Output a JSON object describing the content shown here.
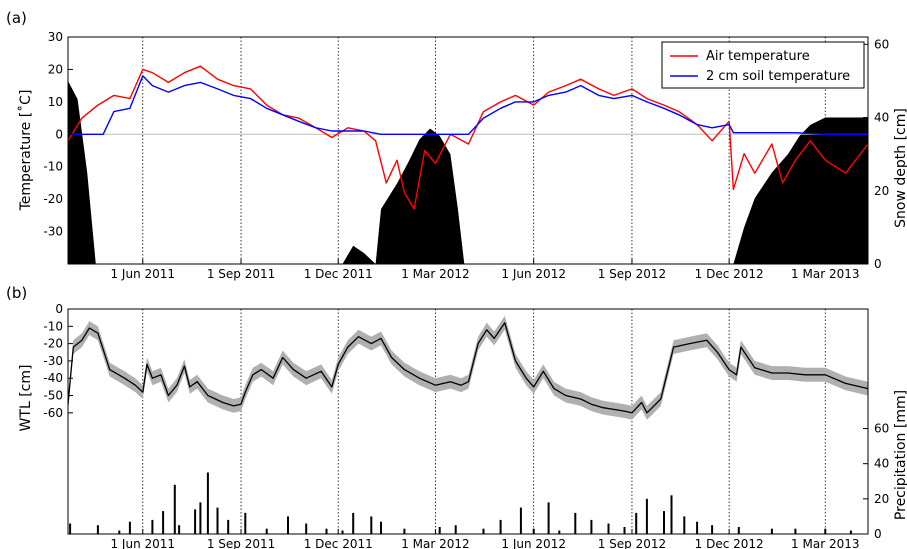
{
  "chart_data": [
    {
      "panel_label": "(a)",
      "type": "line",
      "x_tick_labels": [
        "1 Jun 2011",
        "1 Sep 2011",
        "1 Dec 2011",
        "1 Mar 2012",
        "1 Jun 2012",
        "1 Sep 2012",
        "1 Dec 2012",
        "1 Mar 2013"
      ],
      "x_tick_dates": [
        "2011-06-01",
        "2011-09-01",
        "2011-12-01",
        "2012-03-01",
        "2012-06-01",
        "2012-09-01",
        "2012-12-01",
        "2013-03-01"
      ],
      "xlim": [
        "2011-03-23",
        "2013-04-10"
      ],
      "ylabel": "Temperature [˚C]",
      "ylim": [
        -40,
        30
      ],
      "y_ticks": [
        -30,
        -20,
        -10,
        0,
        10,
        20,
        30
      ],
      "y2label": "Snow depth [cm]",
      "y2_ticks": [
        0,
        20,
        40,
        60
      ],
      "y2lim": [
        0,
        62
      ],
      "zero_line": true,
      "vertical_dotted_lines_at_x_ticks": true,
      "legend_position": "top-right",
      "series": [
        {
          "name": "Air temperature",
          "color": "#ff0000",
          "x": [
            "2011-03-23",
            "2011-04-05",
            "2011-04-20",
            "2011-05-05",
            "2011-05-20",
            "2011-06-01",
            "2011-06-10",
            "2011-06-25",
            "2011-07-10",
            "2011-07-25",
            "2011-08-10",
            "2011-08-25",
            "2011-09-10",
            "2011-09-25",
            "2011-10-10",
            "2011-10-25",
            "2011-11-10",
            "2011-11-25",
            "2011-12-10",
            "2011-12-25",
            "2012-01-05",
            "2012-01-15",
            "2012-01-25",
            "2012-02-01",
            "2012-02-10",
            "2012-02-20",
            "2012-03-01",
            "2012-03-15",
            "2012-04-01",
            "2012-04-15",
            "2012-05-01",
            "2012-05-15",
            "2012-06-01",
            "2012-06-15",
            "2012-07-01",
            "2012-07-15",
            "2012-08-01",
            "2012-08-15",
            "2012-09-01",
            "2012-09-15",
            "2012-10-01",
            "2012-10-15",
            "2012-11-01",
            "2012-11-15",
            "2012-12-01",
            "2012-12-05",
            "2012-12-15",
            "2012-12-25",
            "2013-01-10",
            "2013-01-20",
            "2013-02-01",
            "2013-02-15",
            "2013-03-01",
            "2013-03-20",
            "2013-04-10"
          ],
          "values": [
            -2,
            5,
            9,
            12,
            11,
            20,
            19,
            16,
            19,
            21,
            17,
            15,
            14,
            9,
            6,
            5,
            2,
            -1,
            2,
            1,
            -2,
            -15,
            -8,
            -18,
            -23,
            -5,
            -9,
            0,
            -3,
            7,
            10,
            12,
            9,
            13,
            15,
            17,
            14,
            12,
            14,
            11,
            9,
            7,
            3,
            -2,
            4,
            -17,
            -6,
            -12,
            -3,
            -15,
            -8,
            -2,
            -8,
            -12,
            -3
          ]
        },
        {
          "name": "2 cm soil temperature",
          "color": "#0000ff",
          "x": [
            "2011-03-23",
            "2011-04-10",
            "2011-04-25",
            "2011-05-05",
            "2011-05-20",
            "2011-06-01",
            "2011-06-10",
            "2011-06-25",
            "2011-07-10",
            "2011-07-25",
            "2011-08-10",
            "2011-08-25",
            "2011-09-10",
            "2011-09-25",
            "2011-10-10",
            "2011-10-25",
            "2011-11-10",
            "2011-11-25",
            "2011-12-10",
            "2011-12-25",
            "2012-01-10",
            "2012-02-01",
            "2012-03-01",
            "2012-04-01",
            "2012-04-15",
            "2012-05-01",
            "2012-05-15",
            "2012-06-01",
            "2012-06-15",
            "2012-07-01",
            "2012-07-15",
            "2012-08-01",
            "2012-08-15",
            "2012-09-01",
            "2012-09-15",
            "2012-10-01",
            "2012-10-15",
            "2012-11-01",
            "2012-11-15",
            "2012-12-01",
            "2012-12-05",
            "2012-12-15",
            "2013-01-10",
            "2013-02-01",
            "2013-03-01",
            "2013-04-10"
          ],
          "values": [
            0,
            0,
            0,
            7,
            8,
            18,
            15,
            13,
            15,
            16,
            14,
            12,
            11,
            8,
            6,
            4,
            2,
            1,
            1,
            1,
            0,
            0,
            0,
            0,
            5,
            8,
            10,
            10,
            12,
            13,
            15,
            12,
            11,
            12,
            10,
            8,
            6,
            3,
            2,
            3,
            0.5,
            0.5,
            0.5,
            0.5,
            0,
            0
          ]
        }
      ],
      "snow_depth": {
        "color": "#000000",
        "x": [
          "2011-03-23",
          "2011-04-01",
          "2011-04-10",
          "2011-04-18",
          "2011-12-05",
          "2011-12-15",
          "2011-12-25",
          "2012-01-05",
          "2012-01-10",
          "2012-01-25",
          "2012-02-05",
          "2012-02-15",
          "2012-02-25",
          "2012-03-05",
          "2012-03-15",
          "2012-03-22",
          "2012-03-28",
          "2012-12-05",
          "2012-12-15",
          "2012-12-25",
          "2013-01-10",
          "2013-01-25",
          "2013-02-05",
          "2013-02-15",
          "2013-03-01",
          "2013-03-15",
          "2013-04-10"
        ],
        "values": [
          50,
          45,
          25,
          0,
          0,
          5,
          3,
          0,
          15,
          22,
          28,
          34,
          37,
          35,
          30,
          15,
          0,
          0,
          10,
          18,
          25,
          30,
          35,
          38,
          40,
          40,
          40
        ]
      }
    },
    {
      "panel_label": "(b)",
      "type": "line",
      "x_tick_labels": [
        "1 Jun 2011",
        "1 Sep 2011",
        "1 Dec 2011",
        "1 Mar 2012",
        "1 Jun 2012",
        "1 Sep 2012",
        "1 Dec 2012",
        "1 Mar 2013"
      ],
      "x_tick_dates": [
        "2011-06-01",
        "2011-09-01",
        "2011-12-01",
        "2012-03-01",
        "2012-06-01",
        "2012-09-01",
        "2012-12-01",
        "2013-03-01"
      ],
      "xlim": [
        "2011-03-23",
        "2013-04-10"
      ],
      "ylabel": "WTL [cm]",
      "ylim": [
        -130,
        0
      ],
      "y_ticks": [
        -60,
        -50,
        -40,
        -30,
        -20,
        -10,
        0
      ],
      "y2label": "Precipitation [mm]",
      "y2_ticks": [
        0,
        20,
        40,
        60
      ],
      "y2lim": [
        0,
        128
      ],
      "vertical_dotted_lines_at_x_ticks": true,
      "series": [
        {
          "name": "WTL",
          "color": "#000000",
          "band_color": "#b0b0b0",
          "band_halfwidth": 4,
          "x": [
            "2011-03-23",
            "2011-03-28",
            "2011-04-05",
            "2011-04-12",
            "2011-04-20",
            "2011-05-01",
            "2011-05-15",
            "2011-05-25",
            "2011-06-01",
            "2011-06-05",
            "2011-06-10",
            "2011-06-18",
            "2011-06-25",
            "2011-07-03",
            "2011-07-10",
            "2011-07-15",
            "2011-07-22",
            "2011-08-01",
            "2011-08-15",
            "2011-08-25",
            "2011-09-01",
            "2011-09-05",
            "2011-09-12",
            "2011-09-20",
            "2011-10-01",
            "2011-10-10",
            "2011-10-20",
            "2011-11-01",
            "2011-11-15",
            "2011-11-25",
            "2011-12-01",
            "2011-12-10",
            "2011-12-20",
            "2012-01-01",
            "2012-01-10",
            "2012-01-20",
            "2012-02-01",
            "2012-02-15",
            "2012-03-01",
            "2012-03-15",
            "2012-03-25",
            "2012-04-01",
            "2012-04-10",
            "2012-04-18",
            "2012-04-25",
            "2012-05-05",
            "2012-05-15",
            "2012-05-25",
            "2012-06-01",
            "2012-06-10",
            "2012-06-20",
            "2012-07-01",
            "2012-07-15",
            "2012-07-25",
            "2012-08-05",
            "2012-08-15",
            "2012-08-25",
            "2012-09-01",
            "2012-09-10",
            "2012-09-15",
            "2012-09-20",
            "2012-09-28",
            "2012-10-10",
            "2012-10-25",
            "2012-11-10",
            "2012-11-20",
            "2012-12-01",
            "2012-12-08",
            "2012-12-12",
            "2012-12-25",
            "2013-01-10",
            "2013-01-25",
            "2013-02-10",
            "2013-03-01",
            "2013-03-20",
            "2013-04-10"
          ],
          "values": [
            -55,
            -22,
            -18,
            -11,
            -14,
            -35,
            -40,
            -44,
            -48,
            -32,
            -40,
            -38,
            -50,
            -44,
            -33,
            -45,
            -42,
            -50,
            -54,
            -56,
            -55,
            -48,
            -38,
            -35,
            -40,
            -28,
            -35,
            -40,
            -36,
            -45,
            -32,
            -22,
            -16,
            -20,
            -17,
            -28,
            -35,
            -40,
            -44,
            -42,
            -44,
            -42,
            -20,
            -12,
            -17,
            -8,
            -30,
            -40,
            -45,
            -36,
            -46,
            -50,
            -52,
            -55,
            -57,
            -58,
            -59,
            -60,
            -54,
            -60,
            -57,
            -52,
            -22,
            -20,
            -18,
            -25,
            -35,
            -38,
            -22,
            -34,
            -37,
            -37,
            -38,
            -38,
            -43,
            -46
          ]
        }
      ],
      "precipitation": {
        "color": "#000000",
        "x": [
          "2011-03-25",
          "2011-04-20",
          "2011-05-10",
          "2011-05-20",
          "2011-06-10",
          "2011-06-20",
          "2011-07-01",
          "2011-07-05",
          "2011-07-20",
          "2011-07-25",
          "2011-08-01",
          "2011-08-10",
          "2011-08-20",
          "2011-09-05",
          "2011-09-25",
          "2011-10-15",
          "2011-11-01",
          "2011-11-20",
          "2011-12-05",
          "2011-12-15",
          "2012-01-01",
          "2012-01-10",
          "2012-02-01",
          "2012-03-05",
          "2012-03-20",
          "2012-04-15",
          "2012-05-01",
          "2012-05-20",
          "2012-06-01",
          "2012-06-15",
          "2012-06-25",
          "2012-07-10",
          "2012-07-25",
          "2012-08-10",
          "2012-08-25",
          "2012-09-05",
          "2012-09-15",
          "2012-10-01",
          "2012-10-08",
          "2012-10-20",
          "2012-11-01",
          "2012-11-15",
          "2012-12-10",
          "2013-01-10",
          "2013-02-01",
          "2013-03-01",
          "2013-03-25"
        ],
        "values": [
          6,
          5,
          2,
          7,
          8,
          13,
          28,
          5,
          14,
          18,
          35,
          15,
          8,
          12,
          3,
          10,
          6,
          3,
          2,
          12,
          10,
          7,
          3,
          4,
          5,
          3,
          8,
          15,
          3,
          18,
          2,
          12,
          8,
          6,
          4,
          12,
          20,
          13,
          22,
          10,
          7,
          5,
          4,
          3,
          3,
          3,
          2
        ]
      }
    }
  ]
}
